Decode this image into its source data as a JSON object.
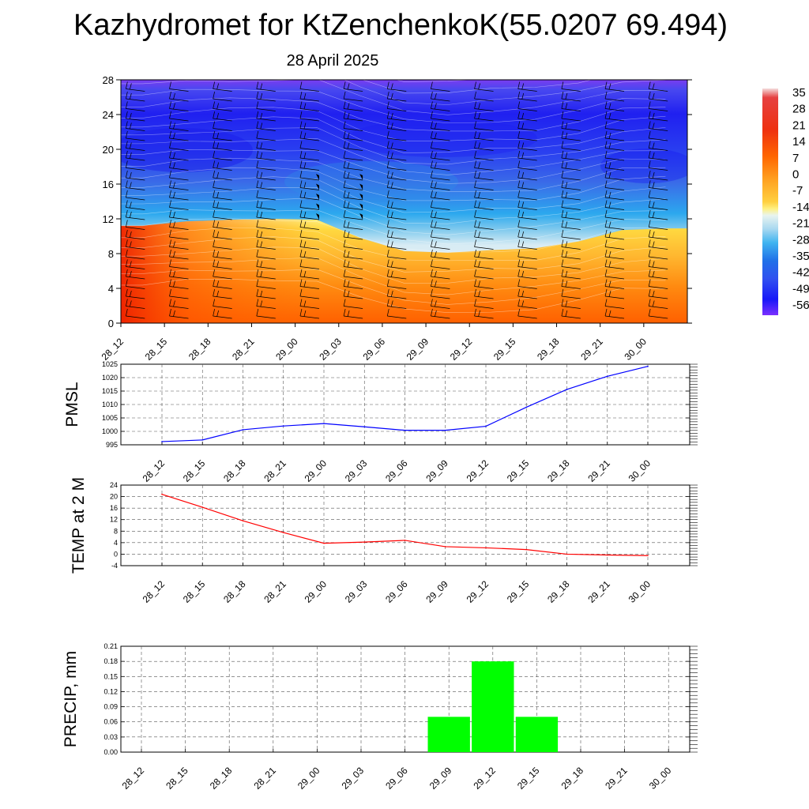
{
  "title": "Kazhydromet for KtZenchenkoK(55.0207 69.494)",
  "subtitle": "28 April 2025",
  "colors": {
    "pmsl_line": "#0000ff",
    "temp_line": "#ff0000",
    "precip_bar": "#00ff00"
  },
  "chart_data": [
    {
      "type": "heatmap",
      "title": "",
      "categories": [
        "28_12",
        "28_15",
        "28_18",
        "28_21",
        "29_00",
        "29_03",
        "29_06",
        "29_09",
        "29_12",
        "29_15",
        "29_18",
        "29_21",
        "30_00"
      ],
      "yticks": [
        0,
        4,
        8,
        12,
        16,
        20,
        24,
        28
      ],
      "ylim": [
        0,
        28
      ],
      "freezing_level": [
        11.2,
        11.7,
        11.9,
        12.0,
        11.9,
        9.8,
        8.3,
        8.1,
        8.4,
        8.6,
        9.4,
        10.7,
        10.9
      ],
      "colorbar": {
        "labels": [
          "35",
          "28",
          "21",
          "14",
          "7",
          "0",
          "-7",
          "-14",
          "-21",
          "-28",
          "-35",
          "-42",
          "-49",
          "-56"
        ]
      },
      "legend_placement": "right",
      "grid": false
    },
    {
      "type": "line",
      "ylabel": "PMSL",
      "categories": [
        "28_12",
        "28_15",
        "28_18",
        "28_21",
        "29_00",
        "29_03",
        "29_06",
        "29_09",
        "29_12",
        "29_15",
        "29_18",
        "29_21",
        "30_00"
      ],
      "values": [
        996.2,
        996.8,
        1000.6,
        1002.0,
        1002.9,
        1001.7,
        1000.4,
        1000.4,
        1001.9,
        1009.0,
        1015.6,
        1020.5,
        1024.2
      ],
      "yticks": [
        995,
        1000,
        1005,
        1010,
        1015,
        1020,
        1025
      ],
      "ylim": [
        995,
        1025
      ],
      "grid": true
    },
    {
      "type": "line",
      "ylabel": "TEMP at 2 M",
      "categories": [
        "28_12",
        "28_15",
        "28_18",
        "28_21",
        "29_00",
        "29_03",
        "29_06",
        "29_09",
        "29_12",
        "29_15",
        "29_18",
        "29_21",
        "30_00"
      ],
      "values": [
        20.8,
        16.3,
        11.6,
        7.5,
        3.8,
        4.2,
        4.8,
        2.6,
        2.2,
        1.6,
        0.0,
        -0.3,
        -0.5
      ],
      "yticks": [
        -4,
        0,
        4,
        8,
        12,
        16,
        20,
        24
      ],
      "ylim": [
        -4,
        24
      ],
      "grid": true
    },
    {
      "type": "bar",
      "ylabel": "PRECIP, mm",
      "categories": [
        "28_12",
        "28_15",
        "28_18",
        "28_21",
        "29_00",
        "29_03",
        "29_06",
        "29_09",
        "29_12",
        "29_15",
        "29_18",
        "29_21",
        "30_00"
      ],
      "values": [
        0,
        0,
        0,
        0,
        0,
        0,
        0,
        0.07,
        0.18,
        0.07,
        0,
        0,
        0
      ],
      "yticks": [
        "0.00",
        "0.03",
        "0.06",
        "0.09",
        "0.12",
        "0.15",
        "0.18",
        "0.21"
      ],
      "ylim": [
        0,
        0.21
      ],
      "grid": true
    }
  ]
}
